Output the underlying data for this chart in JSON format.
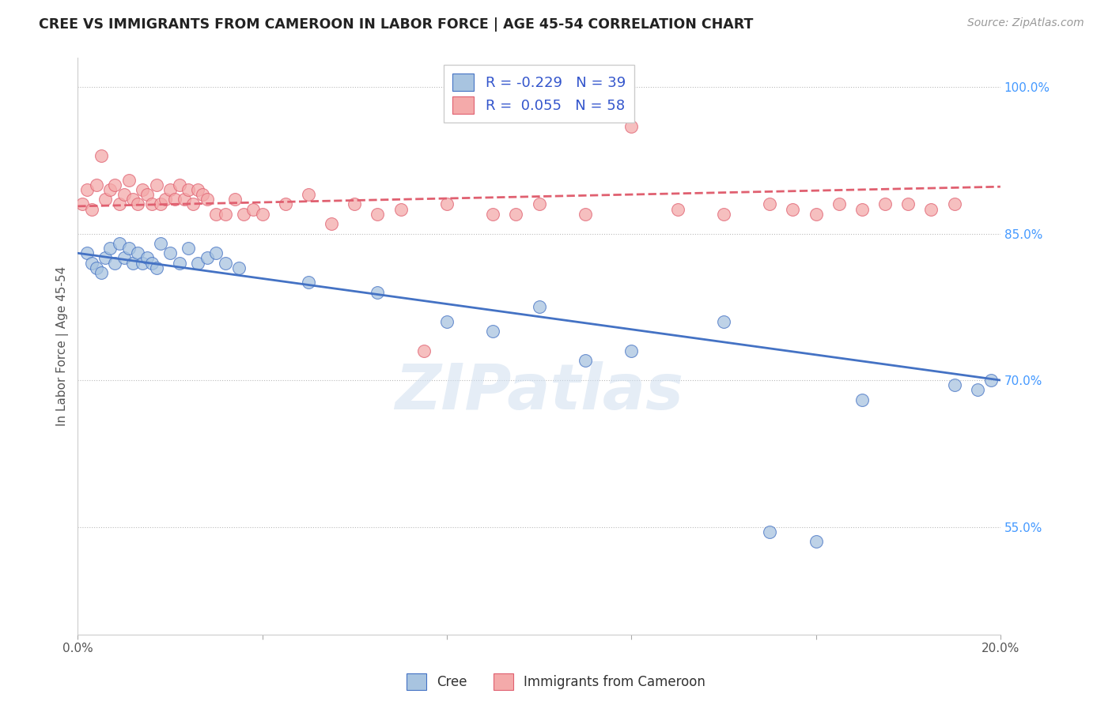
{
  "title": "CREE VS IMMIGRANTS FROM CAMEROON IN LABOR FORCE | AGE 45-54 CORRELATION CHART",
  "source": "Source: ZipAtlas.com",
  "ylabel": "In Labor Force | Age 45-54",
  "xlim": [
    0.0,
    0.2
  ],
  "ylim": [
    0.44,
    1.03
  ],
  "yticks": [
    0.55,
    0.7,
    0.85,
    1.0
  ],
  "yticklabels": [
    "55.0%",
    "70.0%",
    "85.0%",
    "100.0%"
  ],
  "blue_R": -0.229,
  "blue_N": 39,
  "pink_R": 0.055,
  "pink_N": 58,
  "legend_label_blue": "Cree",
  "legend_label_pink": "Immigrants from Cameroon",
  "blue_color": "#A8C4E0",
  "pink_color": "#F4AAAA",
  "blue_line_color": "#4472C4",
  "pink_line_color": "#E06070",
  "watermark": "ZIPatlas",
  "blue_x": [
    0.002,
    0.003,
    0.004,
    0.005,
    0.006,
    0.007,
    0.008,
    0.009,
    0.01,
    0.011,
    0.012,
    0.013,
    0.014,
    0.015,
    0.016,
    0.017,
    0.018,
    0.02,
    0.022,
    0.024,
    0.026,
    0.028,
    0.03,
    0.032,
    0.035,
    0.05,
    0.065,
    0.08,
    0.09,
    0.1,
    0.11,
    0.12,
    0.14,
    0.15,
    0.16,
    0.17,
    0.19,
    0.195,
    0.198
  ],
  "blue_y": [
    0.83,
    0.82,
    0.815,
    0.81,
    0.825,
    0.835,
    0.82,
    0.84,
    0.825,
    0.835,
    0.82,
    0.83,
    0.82,
    0.825,
    0.82,
    0.815,
    0.84,
    0.83,
    0.82,
    0.835,
    0.82,
    0.825,
    0.83,
    0.82,
    0.815,
    0.8,
    0.79,
    0.76,
    0.75,
    0.775,
    0.72,
    0.73,
    0.76,
    0.545,
    0.535,
    0.68,
    0.695,
    0.69,
    0.7
  ],
  "pink_x": [
    0.001,
    0.002,
    0.003,
    0.004,
    0.005,
    0.006,
    0.007,
    0.008,
    0.009,
    0.01,
    0.011,
    0.012,
    0.013,
    0.014,
    0.015,
    0.016,
    0.017,
    0.018,
    0.019,
    0.02,
    0.021,
    0.022,
    0.023,
    0.024,
    0.025,
    0.026,
    0.027,
    0.028,
    0.03,
    0.032,
    0.034,
    0.036,
    0.038,
    0.04,
    0.045,
    0.05,
    0.055,
    0.06,
    0.065,
    0.07,
    0.075,
    0.08,
    0.09,
    0.095,
    0.1,
    0.11,
    0.12,
    0.13,
    0.14,
    0.15,
    0.155,
    0.16,
    0.165,
    0.17,
    0.175,
    0.18,
    0.185,
    0.19
  ],
  "pink_y": [
    0.88,
    0.895,
    0.875,
    0.9,
    0.93,
    0.885,
    0.895,
    0.9,
    0.88,
    0.89,
    0.905,
    0.885,
    0.88,
    0.895,
    0.89,
    0.88,
    0.9,
    0.88,
    0.885,
    0.895,
    0.885,
    0.9,
    0.885,
    0.895,
    0.88,
    0.895,
    0.89,
    0.885,
    0.87,
    0.87,
    0.885,
    0.87,
    0.875,
    0.87,
    0.88,
    0.89,
    0.86,
    0.88,
    0.87,
    0.875,
    0.73,
    0.88,
    0.87,
    0.87,
    0.88,
    0.87,
    0.96,
    0.875,
    0.87,
    0.88,
    0.875,
    0.87,
    0.88,
    0.875,
    0.88,
    0.88,
    0.875,
    0.88
  ]
}
